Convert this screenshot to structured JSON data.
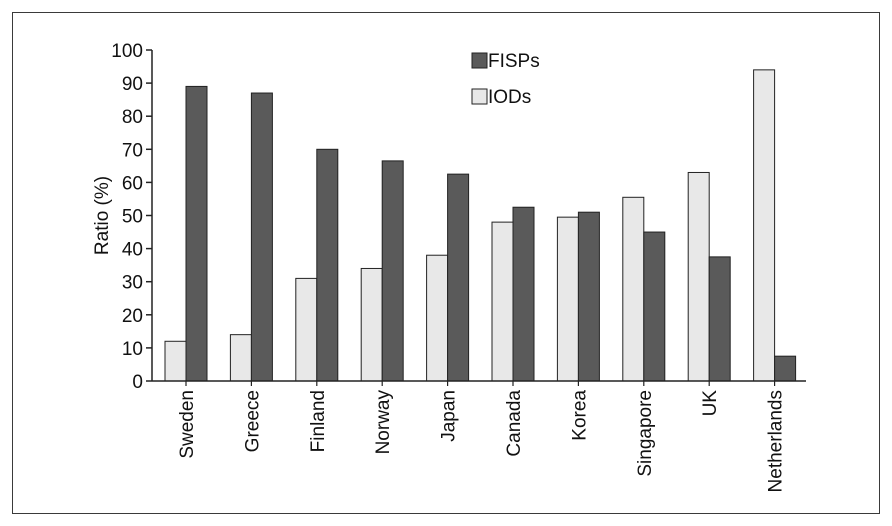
{
  "chart_data": {
    "type": "bar",
    "title": "",
    "xlabel": "",
    "ylabel": "Ratio (%)",
    "ylim": [
      0,
      100
    ],
    "yticks": [
      0,
      10,
      20,
      30,
      40,
      50,
      60,
      70,
      80,
      90,
      100
    ],
    "grid": false,
    "legend_position": "top-center",
    "categories": [
      "Sweden",
      "Greece",
      "Finland",
      "Norway",
      "Japan",
      "Canada",
      "Korea",
      "Singapore",
      "UK",
      "Netherlands"
    ],
    "series": [
      {
        "name": "IODs",
        "color": "#e8e8e8",
        "values": [
          12,
          14,
          31,
          34,
          38,
          48,
          49.5,
          55.5,
          63,
          94
        ]
      },
      {
        "name": "FISPs",
        "color": "#5a5a5a",
        "values": [
          89,
          87,
          70,
          66.5,
          62.5,
          52.5,
          51,
          45,
          37.5,
          7.5
        ]
      }
    ],
    "legend": [
      "FISPs",
      "IODs"
    ]
  }
}
